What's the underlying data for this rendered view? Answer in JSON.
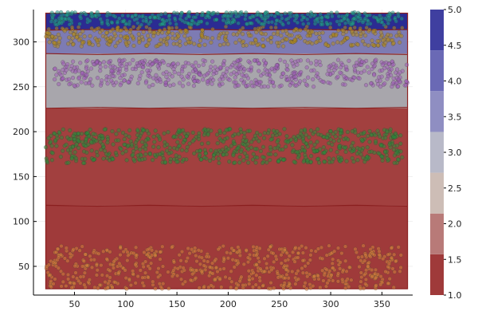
{
  "chart_data": {
    "type": "scatter",
    "title": "",
    "xlabel": "",
    "ylabel": "",
    "xlim": [
      10,
      380
    ],
    "ylim": [
      18,
      336
    ],
    "x_ticks": [
      50,
      100,
      150,
      200,
      250,
      300,
      350
    ],
    "y_ticks": [
      50,
      100,
      150,
      200,
      250,
      300
    ],
    "grid": true,
    "legend": "none",
    "contour": {
      "x_range": [
        22,
        375
      ],
      "y_range": [
        25,
        332
      ],
      "levels": [
        {
          "value": 1.0,
          "y_from": 25,
          "y_to": 118,
          "color": "#9f3a3a"
        },
        {
          "value": 1.0,
          "y_from": 118,
          "y_to": 226,
          "color": "#a2403f"
        },
        {
          "value": 3.0,
          "y_from": 226,
          "y_to": 287,
          "color": "#a8a6ac"
        },
        {
          "value": 4.0,
          "y_from": 287,
          "y_to": 313,
          "color": "#7d7bb3"
        },
        {
          "value": 5.0,
          "y_from": 313,
          "y_to": 332,
          "color": "#2b2b93"
        }
      ],
      "boundaries": [
        118,
        226,
        287,
        313
      ]
    },
    "series": [
      {
        "color": "#d2803d",
        "x_range": [
          22,
          370
        ],
        "y_range": [
          25,
          73
        ],
        "count": 650
      },
      {
        "color": "#2e8b3a",
        "x_range": [
          22,
          370
        ],
        "y_range": [
          165,
          203
        ],
        "count": 650
      },
      {
        "color": "#a05fb8",
        "x_range": [
          30,
          375
        ],
        "y_range": [
          250,
          280
        ],
        "count": 550
      },
      {
        "color": "#b38b1f",
        "x_range": [
          22,
          370
        ],
        "y_range": [
          295,
          317
        ],
        "count": 400
      },
      {
        "color": "#1f9a8a",
        "x_range": [
          25,
          370
        ],
        "y_range": [
          319,
          333
        ],
        "count": 380
      }
    ],
    "colorbar": {
      "min": 1.0,
      "max": 5.0,
      "ticks": [
        "1.0",
        "1.5",
        "2.0",
        "2.5",
        "3.0",
        "3.5",
        "4.0",
        "4.5",
        "5.0"
      ],
      "bands": [
        "#9f3a3a",
        "#b87a78",
        "#cdbdb6",
        "#b8b9c8",
        "#8f8ec2",
        "#6a69b5",
        "#3f3fa0"
      ]
    }
  }
}
